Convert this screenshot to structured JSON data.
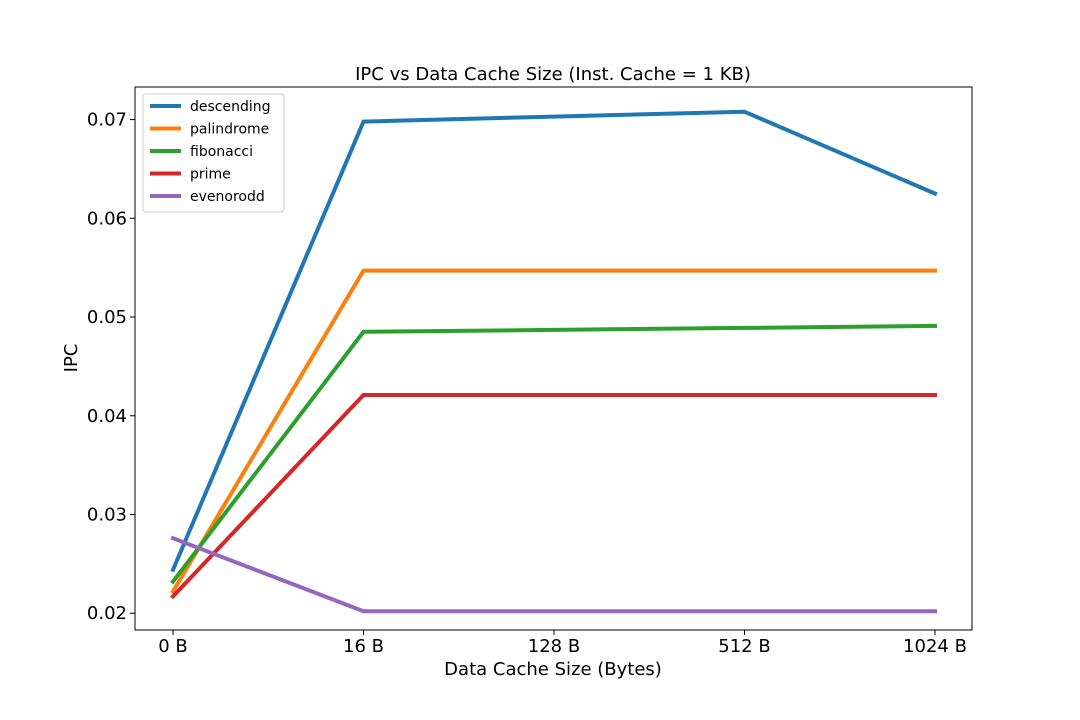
{
  "chart_data": {
    "type": "line",
    "title": "IPC vs Data Cache Size (Inst. Cache = 1 KB)",
    "xlabel": "Data Cache Size (Bytes)",
    "ylabel": "IPC",
    "categories": [
      "0 B",
      "16 B",
      "128 B",
      "512 B",
      "1024 B"
    ],
    "y_ticks": [
      0.02,
      0.03,
      0.04,
      0.05,
      0.06,
      0.07
    ],
    "y_tick_labels": [
      "0.02",
      "0.03",
      "0.04",
      "0.05",
      "0.06",
      "0.07"
    ],
    "ylim": [
      0.0183,
      0.0733
    ],
    "grid": false,
    "legend_position": "top-left",
    "series": [
      {
        "name": "descending",
        "color": "#1f77b4",
        "values": [
          0.0244,
          0.0698,
          0.0703,
          0.0708,
          0.0625
        ]
      },
      {
        "name": "palindrome",
        "color": "#ff7f0e",
        "values": [
          0.0222,
          0.0547,
          0.0547,
          0.0547,
          0.0547
        ]
      },
      {
        "name": "fibonacci",
        "color": "#2ca02c",
        "values": [
          0.0232,
          0.0485,
          0.0487,
          0.0489,
          0.0491
        ]
      },
      {
        "name": "prime",
        "color": "#d62728",
        "values": [
          0.0217,
          0.0421,
          0.0421,
          0.0421,
          0.0421
        ]
      },
      {
        "name": "evenorodd",
        "color": "#9467bd",
        "values": [
          0.0276,
          0.0202,
          0.0202,
          0.0202,
          0.0202
        ]
      }
    ]
  }
}
